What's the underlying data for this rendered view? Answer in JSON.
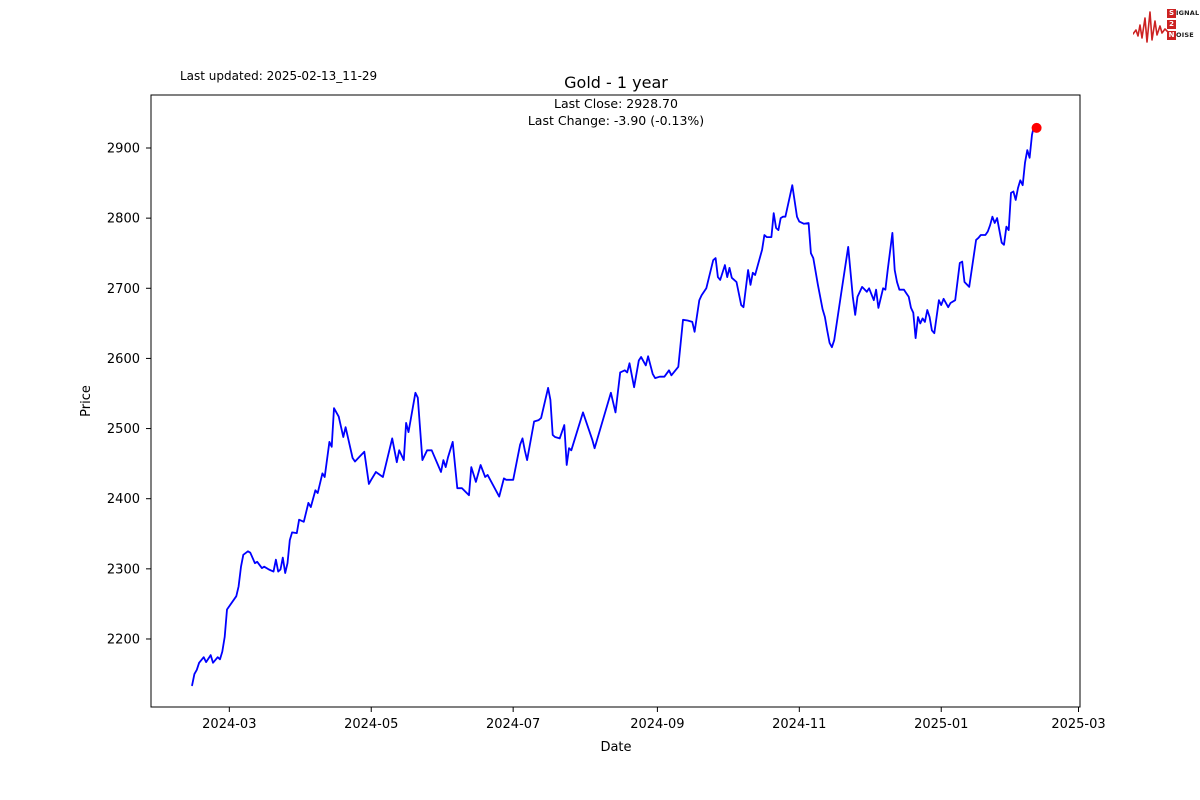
{
  "header": {
    "last_updated": "Last updated: 2025-02-13_11-29",
    "title": "Gold - 1 year",
    "annotation_line1": "Last Close: 2928.70",
    "annotation_line2": "Last Change: -3.90 (-0.13%)"
  },
  "logo": {
    "color": "#cc2222",
    "rows": [
      {
        "box": "S",
        "rest": "IGNAL"
      },
      {
        "box": "2",
        "rest": ""
      },
      {
        "box": "N",
        "rest": "OISE"
      }
    ]
  },
  "chart_data": {
    "type": "line",
    "series_name": "Gold",
    "title": "Gold - 1 year",
    "xlabel": "Date",
    "ylabel": "Price",
    "start_date": "2024-02-14",
    "end_date": "2025-02-13",
    "last_close": 2928.7,
    "last_change": -3.9,
    "last_change_pct": -0.13,
    "line_color": "#0000ff",
    "marker_color": "#ff0000",
    "grid": false,
    "y_axis": {
      "ticks": [
        2200,
        2300,
        2400,
        2500,
        2600,
        2700,
        2800,
        2900
      ],
      "range_hint": [
        2100,
        2980
      ]
    },
    "x_axis": {
      "tick_labels": [
        "2024-03",
        "2024-05",
        "2024-07",
        "2024-09",
        "2024-11",
        "2025-01",
        "2025-03"
      ],
      "tick_days": [
        16,
        77,
        138,
        200,
        261,
        322,
        381
      ]
    },
    "points": [
      [
        0,
        2134
      ],
      [
        1,
        2150
      ],
      [
        2,
        2156
      ],
      [
        3,
        2166
      ],
      [
        5,
        2174
      ],
      [
        6,
        2167
      ],
      [
        8,
        2177
      ],
      [
        9,
        2166
      ],
      [
        11,
        2174
      ],
      [
        12,
        2171
      ],
      [
        13,
        2182
      ],
      [
        14,
        2203
      ],
      [
        15,
        2242
      ],
      [
        19,
        2261
      ],
      [
        20,
        2275
      ],
      [
        21,
        2303
      ],
      [
        22,
        2320
      ],
      [
        24,
        2325
      ],
      [
        25,
        2323
      ],
      [
        27,
        2308
      ],
      [
        28,
        2310
      ],
      [
        30,
        2301
      ],
      [
        31,
        2303
      ],
      [
        33,
        2299
      ],
      [
        35,
        2296
      ],
      [
        36,
        2313
      ],
      [
        37,
        2296
      ],
      [
        38,
        2299
      ],
      [
        39,
        2316
      ],
      [
        40,
        2294
      ],
      [
        41,
        2308
      ],
      [
        42,
        2341
      ],
      [
        43,
        2352
      ],
      [
        45,
        2351
      ],
      [
        46,
        2370
      ],
      [
        48,
        2367
      ],
      [
        50,
        2394
      ],
      [
        51,
        2388
      ],
      [
        53,
        2412
      ],
      [
        54,
        2408
      ],
      [
        56,
        2436
      ],
      [
        57,
        2431
      ],
      [
        59,
        2481
      ],
      [
        60,
        2474
      ],
      [
        61,
        2529
      ],
      [
        63,
        2517
      ],
      [
        65,
        2488
      ],
      [
        66,
        2502
      ],
      [
        69,
        2458
      ],
      [
        70,
        2453
      ],
      [
        72,
        2460
      ],
      [
        74,
        2467
      ],
      [
        76,
        2421
      ],
      [
        77,
        2427
      ],
      [
        79,
        2438
      ],
      [
        82,
        2431
      ],
      [
        86,
        2486
      ],
      [
        88,
        2452
      ],
      [
        89,
        2469
      ],
      [
        91,
        2455
      ],
      [
        92,
        2508
      ],
      [
        93,
        2495
      ],
      [
        96,
        2551
      ],
      [
        97,
        2544
      ],
      [
        99,
        2455
      ],
      [
        101,
        2469
      ],
      [
        103,
        2469
      ],
      [
        107,
        2438
      ],
      [
        108,
        2455
      ],
      [
        109,
        2445
      ],
      [
        110,
        2459
      ],
      [
        112,
        2481
      ],
      [
        114,
        2415
      ],
      [
        116,
        2415
      ],
      [
        119,
        2405
      ],
      [
        120,
        2445
      ],
      [
        122,
        2424
      ],
      [
        124,
        2448
      ],
      [
        126,
        2431
      ],
      [
        127,
        2434
      ],
      [
        132,
        2403
      ],
      [
        134,
        2429
      ],
      [
        135,
        2427
      ],
      [
        138,
        2427
      ],
      [
        141,
        2477
      ],
      [
        142,
        2486
      ],
      [
        143,
        2469
      ],
      [
        144,
        2455
      ],
      [
        147,
        2510
      ],
      [
        149,
        2512
      ],
      [
        150,
        2515
      ],
      [
        153,
        2558
      ],
      [
        154,
        2541
      ],
      [
        155,
        2491
      ],
      [
        156,
        2488
      ],
      [
        158,
        2486
      ],
      [
        160,
        2505
      ],
      [
        161,
        2448
      ],
      [
        162,
        2472
      ],
      [
        163,
        2469
      ],
      [
        168,
        2523
      ],
      [
        172,
        2484
      ],
      [
        173,
        2472
      ],
      [
        180,
        2551
      ],
      [
        182,
        2523
      ],
      [
        184,
        2580
      ],
      [
        186,
        2583
      ],
      [
        187,
        2580
      ],
      [
        188,
        2593
      ],
      [
        190,
        2559
      ],
      [
        192,
        2597
      ],
      [
        193,
        2602
      ],
      [
        195,
        2590
      ],
      [
        196,
        2603
      ],
      [
        198,
        2578
      ],
      [
        199,
        2572
      ],
      [
        201,
        2574
      ],
      [
        203,
        2574
      ],
      [
        205,
        2583
      ],
      [
        206,
        2576
      ],
      [
        209,
        2588
      ],
      [
        211,
        2655
      ],
      [
        213,
        2654
      ],
      [
        215,
        2652
      ],
      [
        216,
        2638
      ],
      [
        218,
        2683
      ],
      [
        219,
        2690
      ],
      [
        221,
        2700
      ],
      [
        224,
        2740
      ],
      [
        225,
        2743
      ],
      [
        226,
        2716
      ],
      [
        227,
        2712
      ],
      [
        229,
        2733
      ],
      [
        230,
        2716
      ],
      [
        231,
        2729
      ],
      [
        232,
        2715
      ],
      [
        233,
        2712
      ],
      [
        234,
        2709
      ],
      [
        236,
        2676
      ],
      [
        237,
        2673
      ],
      [
        239,
        2726
      ],
      [
        240,
        2705
      ],
      [
        241,
        2722
      ],
      [
        242,
        2719
      ],
      [
        245,
        2755
      ],
      [
        246,
        2776
      ],
      [
        247,
        2773
      ],
      [
        249,
        2773
      ],
      [
        250,
        2807
      ],
      [
        251,
        2786
      ],
      [
        252,
        2783
      ],
      [
        253,
        2800
      ],
      [
        254,
        2802
      ],
      [
        255,
        2802
      ],
      [
        258,
        2847
      ],
      [
        260,
        2802
      ],
      [
        261,
        2795
      ],
      [
        263,
        2792
      ],
      [
        265,
        2793
      ],
      [
        266,
        2750
      ],
      [
        267,
        2743
      ],
      [
        269,
        2705
      ],
      [
        271,
        2670
      ],
      [
        272,
        2659
      ],
      [
        273,
        2640
      ],
      [
        274,
        2622
      ],
      [
        275,
        2616
      ],
      [
        276,
        2626
      ],
      [
        279,
        2693
      ],
      [
        282,
        2759
      ],
      [
        284,
        2688
      ],
      [
        285,
        2662
      ],
      [
        286,
        2688
      ],
      [
        288,
        2702
      ],
      [
        290,
        2695
      ],
      [
        291,
        2700
      ],
      [
        293,
        2683
      ],
      [
        294,
        2698
      ],
      [
        295,
        2672
      ],
      [
        297,
        2700
      ],
      [
        298,
        2698
      ],
      [
        299,
        2726
      ],
      [
        301,
        2779
      ],
      [
        302,
        2726
      ],
      [
        303,
        2709
      ],
      [
        304,
        2698
      ],
      [
        306,
        2698
      ],
      [
        307,
        2693
      ],
      [
        308,
        2688
      ],
      [
        309,
        2672
      ],
      [
        310,
        2665
      ],
      [
        311,
        2629
      ],
      [
        312,
        2659
      ],
      [
        313,
        2650
      ],
      [
        314,
        2657
      ],
      [
        315,
        2652
      ],
      [
        316,
        2669
      ],
      [
        317,
        2659
      ],
      [
        318,
        2640
      ],
      [
        319,
        2636
      ],
      [
        321,
        2683
      ],
      [
        322,
        2676
      ],
      [
        323,
        2685
      ],
      [
        325,
        2673
      ],
      [
        326,
        2679
      ],
      [
        328,
        2683
      ],
      [
        330,
        2736
      ],
      [
        331,
        2738
      ],
      [
        332,
        2709
      ],
      [
        334,
        2702
      ],
      [
        337,
        2769
      ],
      [
        338,
        2772
      ],
      [
        339,
        2776
      ],
      [
        341,
        2776
      ],
      [
        342,
        2781
      ],
      [
        343,
        2790
      ],
      [
        344,
        2802
      ],
      [
        345,
        2793
      ],
      [
        346,
        2800
      ],
      [
        348,
        2765
      ],
      [
        349,
        2762
      ],
      [
        350,
        2788
      ],
      [
        351,
        2783
      ],
      [
        352,
        2836
      ],
      [
        353,
        2838
      ],
      [
        354,
        2826
      ],
      [
        355,
        2843
      ],
      [
        356,
        2854
      ],
      [
        357,
        2847
      ],
      [
        358,
        2879
      ],
      [
        359,
        2897
      ],
      [
        360,
        2886
      ],
      [
        361,
        2919
      ],
      [
        362,
        2933
      ],
      [
        363,
        2928.7
      ]
    ]
  }
}
